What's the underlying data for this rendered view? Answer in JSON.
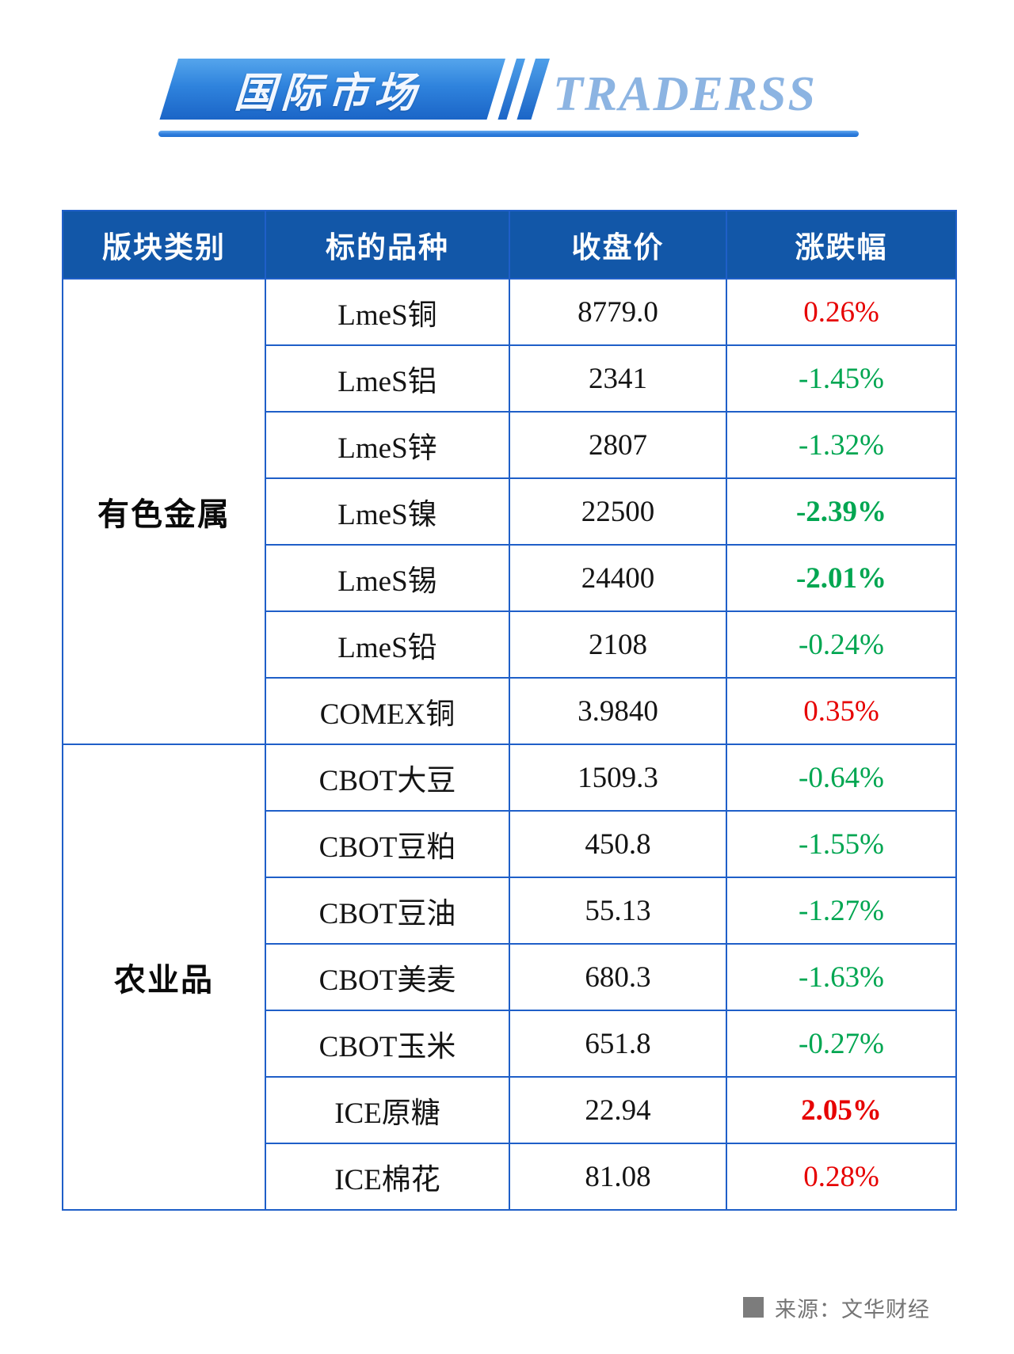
{
  "header": {
    "badge_text": "国际市场",
    "brand_text": "TRADERSS",
    "accent_blue": "#1b65c7",
    "brand_color": "#8cb4e2"
  },
  "chart_data": {
    "type": "table",
    "title": "国际市场",
    "columns": [
      "版块类别",
      "标的品种",
      "收盘价",
      "涨跌幅"
    ],
    "sections": [
      {
        "category": "有色金属",
        "rows": [
          {
            "name": "LmeS铜",
            "close": "8779.0",
            "change": "0.26%",
            "direction": "up",
            "bold": false
          },
          {
            "name": "LmeS铝",
            "close": "2341",
            "change": "-1.45%",
            "direction": "down",
            "bold": false
          },
          {
            "name": "LmeS锌",
            "close": "2807",
            "change": "-1.32%",
            "direction": "down",
            "bold": false
          },
          {
            "name": "LmeS镍",
            "close": "22500",
            "change": "-2.39%",
            "direction": "down",
            "bold": true
          },
          {
            "name": "LmeS锡",
            "close": "24400",
            "change": "-2.01%",
            "direction": "down",
            "bold": true
          },
          {
            "name": "LmeS铅",
            "close": "2108",
            "change": "-0.24%",
            "direction": "down",
            "bold": false
          },
          {
            "name": "COMEX铜",
            "close": "3.9840",
            "change": "0.35%",
            "direction": "up",
            "bold": false
          }
        ]
      },
      {
        "category": "农业品",
        "rows": [
          {
            "name": "CBOT大豆",
            "close": "1509.3",
            "change": "-0.64%",
            "direction": "down",
            "bold": false
          },
          {
            "name": "CBOT豆粕",
            "close": "450.8",
            "change": "-1.55%",
            "direction": "down",
            "bold": false
          },
          {
            "name": "CBOT豆油",
            "close": "55.13",
            "change": "-1.27%",
            "direction": "down",
            "bold": false
          },
          {
            "name": "CBOT美麦",
            "close": "680.3",
            "change": "-1.63%",
            "direction": "down",
            "bold": false
          },
          {
            "name": "CBOT玉米",
            "close": "651.8",
            "change": "-0.27%",
            "direction": "down",
            "bold": false
          },
          {
            "name": "ICE原糖",
            "close": "22.94",
            "change": "2.05%",
            "direction": "up",
            "bold": true
          },
          {
            "name": "ICE棉花",
            "close": "81.08",
            "change": "0.28%",
            "direction": "up",
            "bold": false
          }
        ]
      }
    ],
    "colors": {
      "up": "#e60000",
      "down": "#00a651",
      "border": "#1f5fc8",
      "header_bg": "#1257a8",
      "header_text": "#ffffff"
    },
    "layout": {
      "grid": "full-borders",
      "up_means": "red",
      "down_means": "green"
    }
  },
  "footer": {
    "source_label": "来源：文华财经"
  }
}
